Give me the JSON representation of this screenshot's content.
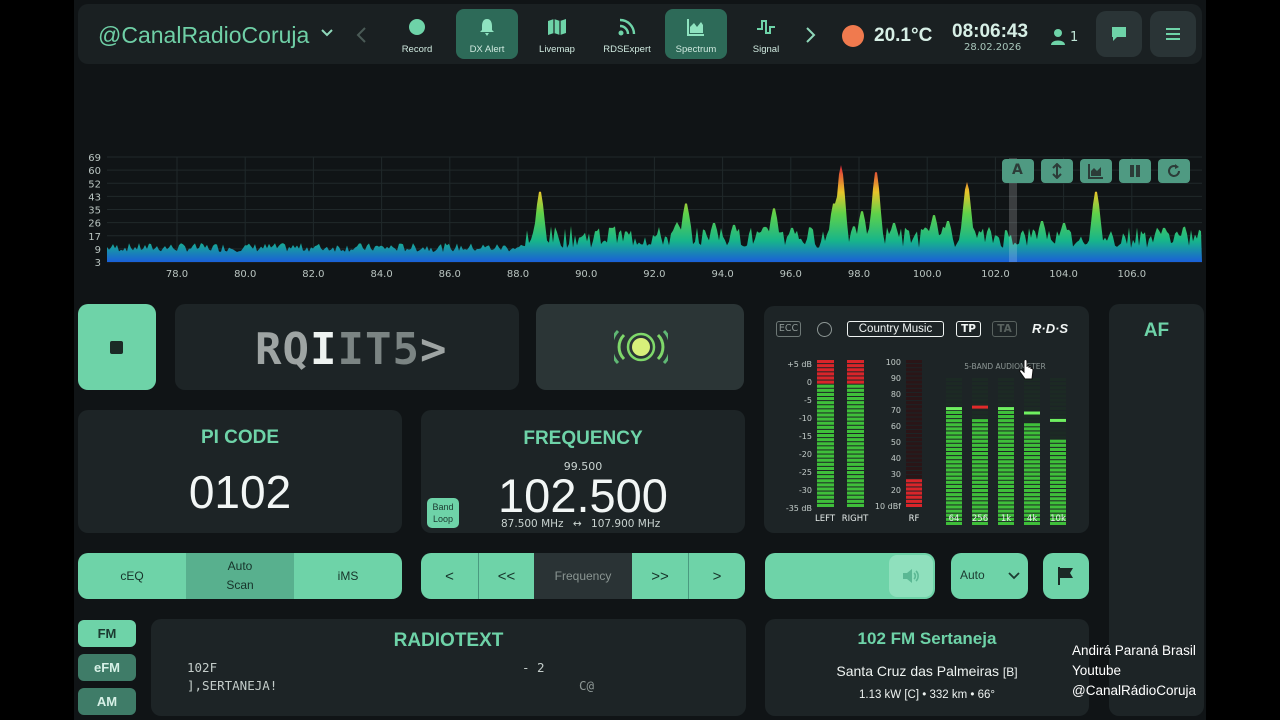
{
  "topbar": {
    "station_name": "@CanalRadioCoruja",
    "nav": [
      {
        "label": "Record",
        "icon": "record-icon",
        "active": false
      },
      {
        "label": "DX Alert",
        "icon": "bell-icon",
        "active": true
      },
      {
        "label": "Livemap",
        "icon": "map-icon",
        "active": false
      },
      {
        "label": "RDSExpert",
        "icon": "rds-icon",
        "active": false
      },
      {
        "label": "Spectrum",
        "icon": "chart-icon",
        "active": true
      },
      {
        "label": "Signal",
        "icon": "signal-icon",
        "active": false
      }
    ],
    "temperature": "20.1°C",
    "time": "08:06:43",
    "date": "28.02.2026",
    "users": "1",
    "accent": "#6ed3a8"
  },
  "spectrum": {
    "y_ticks": [
      "69",
      "60",
      "52",
      "43",
      "35",
      "26",
      "17",
      "9",
      "3"
    ],
    "x_ticks": [
      "78.0",
      "80.0",
      "82.0",
      "84.0",
      "86.0",
      "88.0",
      "90.0",
      "92.0",
      "94.0",
      "96.0",
      "98.0",
      "100.0",
      "102.0",
      "104.0",
      "106.0"
    ],
    "controls": [
      "auto-icon",
      "resize-icon",
      "chart-icon",
      "pause-icon",
      "refresh-icon"
    ],
    "auto_label": "A"
  },
  "rds_ps": {
    "chars": [
      "R",
      "Q",
      "I",
      "I",
      "T",
      "5",
      ">"
    ]
  },
  "pi": {
    "title": "PI CODE",
    "value": "0102"
  },
  "frequency": {
    "title": "FREQUENCY",
    "previous": "99.500",
    "value": "102.500",
    "range_low": "87.500 MHz",
    "range_sep": "↔",
    "range_high": "107.900 MHz",
    "band_loop_1": "Band",
    "band_loop_2": "Loop"
  },
  "rds_panel": {
    "ecc": "ECC",
    "pty": "Country Music",
    "tp": "TP",
    "ta": "TA",
    "rds_logo": "R·D·S",
    "db_scale": [
      "+5 dB",
      "0",
      "-5",
      "-10",
      "-15",
      "-20",
      "-25",
      "-30",
      "-35 dB"
    ],
    "rf_scale": [
      "100",
      "90",
      "80",
      "70",
      "60",
      "50",
      "40",
      "30",
      "20",
      "10 dBf"
    ],
    "meter_labels": [
      "LEFT",
      "RIGHT",
      "RF"
    ],
    "audiometer_title": "5-BAND AUDIOMETER",
    "band_labels": [
      "64",
      "256",
      "1k",
      "4k",
      "10k"
    ]
  },
  "af": {
    "title": "AF"
  },
  "controls_left": {
    "ceq": "cEQ",
    "auto1": "Auto",
    "auto2": "Scan",
    "ims": "iMS"
  },
  "controls_mid": {
    "label": "Frequency",
    "prev": "<",
    "prevfast": "<<",
    "nextfast": ">>",
    "next": ">"
  },
  "controls_right": {
    "mode": "Auto"
  },
  "bands": [
    "FM",
    "eFM",
    "AM"
  ],
  "radiotext": {
    "title": "RADIOTEXT",
    "line1_left": "102F",
    "line1_right": "- 2",
    "line2_left": "],SERTANEJA!",
    "line2_right": "C@"
  },
  "station_info": {
    "name": "102 FM Sertaneja",
    "city": "Santa Cruz das Palmeiras",
    "itu": "[B]",
    "details": "1.13 kW [C] • 332 km • 66°"
  },
  "watermark": [
    "Andirá Paraná Brasil",
    "Youtube",
    "@CanalRádioCoruja"
  ]
}
